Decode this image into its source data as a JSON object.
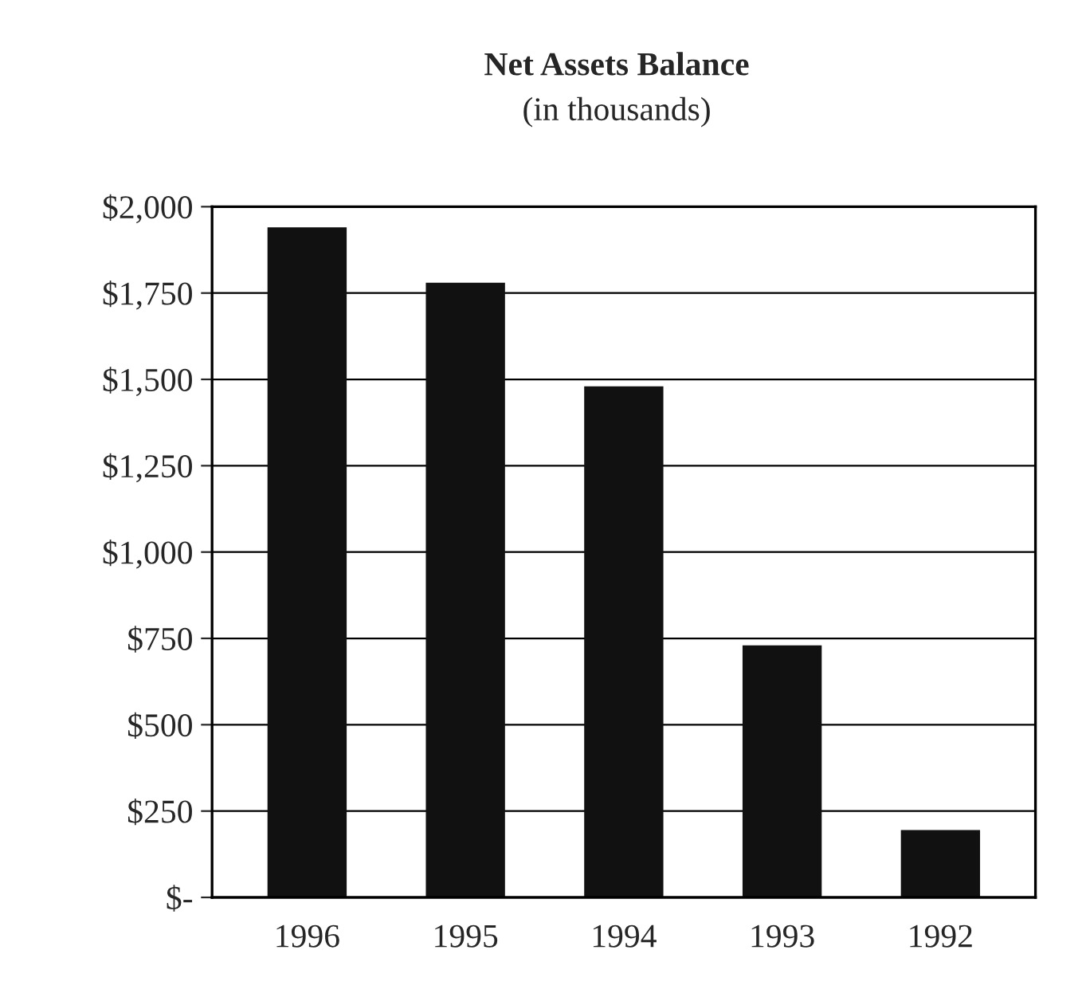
{
  "chart_data": {
    "type": "bar",
    "title": "Net Assets Balance",
    "subtitle": "(in thousands)",
    "categories": [
      "1996",
      "1995",
      "1994",
      "1993",
      "1992"
    ],
    "values": [
      1940,
      1780,
      1480,
      730,
      195
    ],
    "color": "#111111",
    "ylim": [
      0,
      2000
    ],
    "yticks": [
      {
        "value": 0,
        "label": "$-"
      },
      {
        "value": 250,
        "label": "$250"
      },
      {
        "value": 500,
        "label": "$500"
      },
      {
        "value": 750,
        "label": "$750"
      },
      {
        "value": 1000,
        "label": "$1,000"
      },
      {
        "value": 1250,
        "label": "$1,250"
      },
      {
        "value": 1500,
        "label": "$1,500"
      },
      {
        "value": 1750,
        "label": "$1,750"
      },
      {
        "value": 2000,
        "label": "$2,000"
      }
    ],
    "grid": "y"
  }
}
